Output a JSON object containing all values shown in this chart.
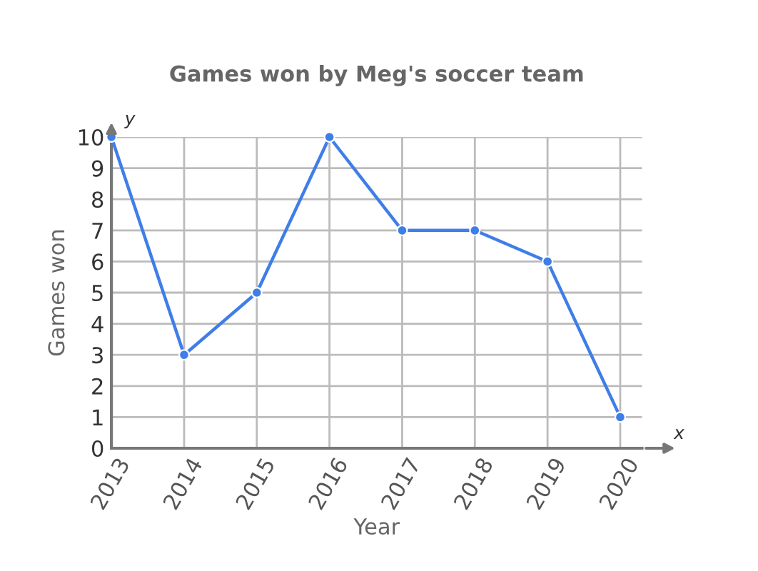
{
  "chart_data": {
    "type": "line",
    "title": "Games won by Meg's soccer team",
    "xlabel": "Year",
    "ylabel": "Games won",
    "categories": [
      "2013",
      "2014",
      "2015",
      "2016",
      "2017",
      "2018",
      "2019",
      "2020"
    ],
    "series": [
      {
        "color": "#3f7ee8",
        "values": [
          10,
          3,
          5,
          10,
          7,
          7,
          6,
          1
        ]
      }
    ],
    "ylim": [
      0,
      10
    ],
    "yticks": [
      0,
      1,
      2,
      3,
      4,
      5,
      6,
      7,
      8,
      9,
      10
    ],
    "grid": true,
    "marker": "circle",
    "line_style": "solid",
    "annotations": [
      "x",
      "y"
    ]
  }
}
